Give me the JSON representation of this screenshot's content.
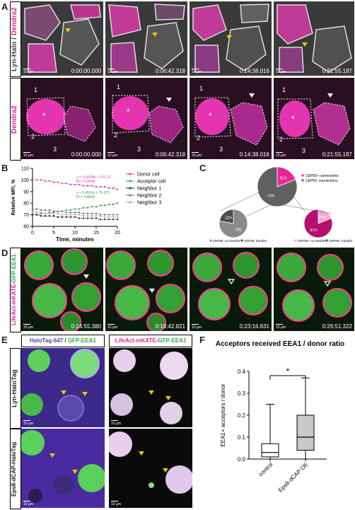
{
  "panels": {
    "A": {
      "letter": "A",
      "row1_label_left": "Lyn-Halo",
      "row1_label_sep": " / ",
      "row1_label_right": "Dendra2",
      "row2_label": "Dendra2",
      "timestamps": [
        "0:00:00.000",
        "0:06:42.318",
        "0:14:38.016",
        "0:21:55.187"
      ],
      "scalebar": "10 µm",
      "cell_labels": [
        "1",
        "2",
        "3"
      ]
    },
    "B": {
      "letter": "B",
      "chart_data": {
        "type": "scatter",
        "xlabel": "Time, minutes",
        "ylabel": "Relative MFI, %",
        "xlim": [
          0,
          20
        ],
        "ylim": [
          60,
          110
        ],
        "xticks": [
          "0",
          "5",
          "10",
          "15",
          "20"
        ],
        "yticks": [
          "60",
          "70",
          "80",
          "90",
          "100",
          "110"
        ],
        "legend": [
          "Donor cell",
          "Acceptor cell",
          "Neighbor 1",
          "Neighbor 2",
          "Neighbor 3"
        ],
        "legend_position": "right",
        "equations": [
          {
            "text": "y = -0.4658x + 101.21",
            "r2": "R² = 0.8648",
            "color": "#d63ea8"
          },
          {
            "text": "y = 0.4916x + 70.075",
            "r2": "R² = 0.8865",
            "color": "#2ea84a"
          }
        ],
        "series": [
          {
            "name": "Donor cell",
            "color": "#d63ea8",
            "x": [
              0,
              1,
              2,
              3,
              4,
              5,
              6,
              7,
              8,
              9,
              10,
              11,
              12,
              13,
              14,
              15,
              16,
              17,
              18,
              19,
              20
            ],
            "y": [
              101,
              100,
              100,
              99,
              99,
              98,
              98,
              97,
              97,
              96,
              96,
              96,
              95,
              95,
              95,
              94,
              94,
              94,
              93,
              93,
              92
            ]
          },
          {
            "name": "Acceptor cell",
            "color": "#2ea84a",
            "x": [
              0,
              1,
              2,
              3,
              4,
              5,
              6,
              7,
              8,
              9,
              10,
              11,
              12,
              13,
              14,
              15,
              16,
              17,
              18,
              19,
              20
            ],
            "y": [
              70,
              70,
              71,
              71,
              72,
              72,
              73,
              73,
              74,
              74,
              75,
              75,
              76,
              76,
              77,
              77,
              78,
              78,
              79,
              79,
              80
            ]
          },
          {
            "name": "Neighbor 1",
            "color": "#222222",
            "x": [
              0,
              1,
              2,
              3,
              4,
              5,
              6,
              7,
              8,
              9,
              10,
              11,
              12,
              13,
              14,
              15,
              16,
              17,
              18,
              19,
              20
            ],
            "y": [
              70,
              70,
              69,
              69,
              69,
              69,
              68,
              68,
              68,
              68,
              68,
              67,
              67,
              67,
              67,
              67,
              66,
              66,
              66,
              66,
              66
            ]
          },
          {
            "name": "Neighbor 2",
            "color": "#6b6b6b",
            "x": [
              0,
              1,
              2,
              3,
              4,
              5,
              6,
              7,
              8,
              9,
              10,
              11,
              12,
              13,
              14,
              15,
              16,
              17,
              18,
              19,
              20
            ],
            "y": [
              75,
              75,
              74,
              74,
              74,
              73,
              73,
              73,
              72,
              72,
              72,
              72,
              71,
              71,
              71,
              71,
              70,
              70,
              70,
              70,
              70
            ]
          },
          {
            "name": "Neighbor 3",
            "color": "#a8a8a8",
            "x": [
              0,
              1,
              2,
              3,
              4,
              5,
              6,
              7,
              8,
              9,
              10,
              11,
              12,
              13,
              14,
              15,
              16,
              17,
              18,
              19,
              20
            ],
            "y": [
              72,
              72,
              72,
              71,
              71,
              71,
              71,
              70,
              70,
              70,
              70,
              70,
              69,
              69,
              69,
              69,
              69,
              68,
              68,
              68,
              68
            ]
          }
        ]
      }
    },
    "C": {
      "letter": "C",
      "chart_data": [
        {
          "type": "pie",
          "slices": [
            {
              "label": "CEP55+ connections",
              "value": 19,
              "color": "#e8259a"
            },
            {
              "label": "CEP55- connections",
              "value": 81,
              "color": "#606060"
            }
          ],
          "labels": [
            "81%",
            "19%"
          ]
        },
        {
          "type": "pie",
          "slices": [
            {
              "label": "CEP55- no transfer",
              "value": 78,
              "color": "#8a8a8a"
            },
            {
              "label": "CEP55- transfer",
              "value": 22,
              "color": "#4a4a4a"
            }
          ],
          "labels": [
            "78%",
            "22%"
          ]
        },
        {
          "type": "pie",
          "slices": [
            {
              "label": "CEP55+ no transfer",
              "value": 19,
              "color": "#f0a8d4"
            },
            {
              "label": "CEP55+ transfer",
              "value": 81,
              "color": "#b5106e"
            }
          ],
          "labels": [
            "19%",
            "81%"
          ]
        }
      ],
      "legend_top": [
        "CEP55+ connections",
        "CEP55- connections"
      ],
      "legend_left": [
        "CEP55- no transfer",
        "CEP55- transfer"
      ],
      "legend_right": [
        "CEP55+ no transfer",
        "CEP55+ transfer"
      ]
    },
    "D": {
      "letter": "D",
      "side_label_left": "LifeAct-mKATE",
      "side_label_sep": "-",
      "side_label_right": "GFP-EEA1",
      "timestamps": [
        "0:14:55.380",
        "0:16:42.821",
        "0:23:16.631",
        "0:26:51.322"
      ],
      "scalebar": "10 µm"
    },
    "E": {
      "letter": "E",
      "header_left_a": "HaloTag-647",
      "header_left_sep": " / ",
      "header_left_b": "GFP-EEA1",
      "header_right_a": "LifeAct-mKATE",
      "header_right_sep": "-",
      "header_right_b": "GFP-EEA1",
      "row_labels": [
        "Lyn-HaloTag",
        "Eps8-dCAP-HaloTag"
      ],
      "scalebar": "10 µm"
    },
    "F": {
      "letter": "F",
      "chart_data": {
        "type": "box",
        "title": "Acceptors received EEA1 / donor ratio",
        "ylabel": "EEA1+ acceptors / donor",
        "ylim": [
          0,
          0.4
        ],
        "yticks": [
          "0.0",
          "0.1",
          "0.2",
          "0.3",
          "0.4"
        ],
        "categories": [
          "control",
          "Eps8-dCAP OE"
        ],
        "boxes": [
          {
            "name": "control",
            "min": 0.0,
            "q1": 0.01,
            "median": 0.03,
            "q3": 0.07,
            "max": 0.25
          },
          {
            "name": "Eps8-dCAP OE",
            "min": 0.0,
            "q1": 0.04,
            "median": 0.1,
            "q3": 0.2,
            "max": 0.37
          }
        ],
        "significance": "*"
      }
    }
  }
}
